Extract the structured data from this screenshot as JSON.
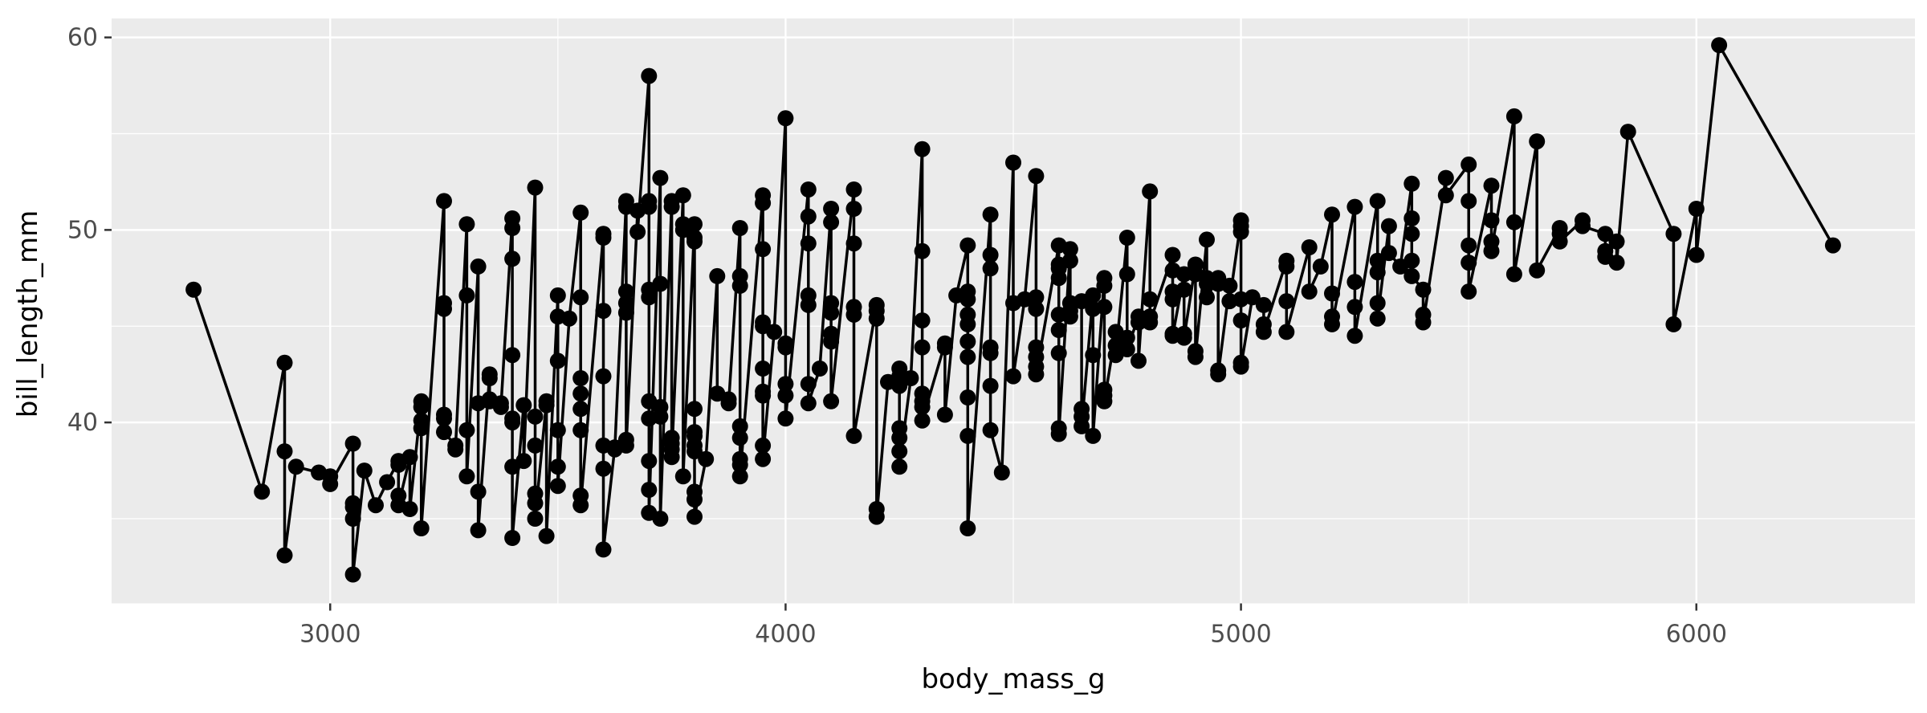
{
  "page": {
    "background": "#FFFFFF"
  },
  "chart_data": {
    "type": "line",
    "title": "",
    "xlabel": "body_mass_g",
    "ylabel": "bill_length_mm",
    "legend": "none",
    "grid": "major+minor",
    "x_axis": {
      "ticks": [
        3000,
        4000,
        5000,
        6000
      ],
      "minor_ticks": [
        2500,
        3500,
        4500,
        5500
      ],
      "range": [
        2520,
        6480
      ]
    },
    "y_axis": {
      "ticks": [
        40,
        50,
        60
      ],
      "minor_ticks": [
        35,
        45,
        55
      ],
      "range": [
        30.6,
        60.985
      ]
    },
    "style": {
      "panel_bg": "#EBEBEB",
      "grid_color": "#FFFFFF",
      "line_color": "#000000",
      "point_color": "#000000",
      "tick_mark_color": "#333333",
      "tick_label_color": "#4D4D4D",
      "axis_title_color": "#000000",
      "point_radius": 10,
      "line_width": 3.5
    },
    "points": [
      [
        2700,
        46.9
      ],
      [
        2850,
        36.4
      ],
      [
        2900,
        43.1
      ],
      [
        2900,
        38.5
      ],
      [
        2900,
        33.1
      ],
      [
        2925,
        37.7
      ],
      [
        2975,
        37.4
      ],
      [
        3000,
        37.2
      ],
      [
        3000,
        36.8
      ],
      [
        3050,
        38.9
      ],
      [
        3050,
        35.8
      ],
      [
        3050,
        35.6
      ],
      [
        3050,
        35.0
      ],
      [
        3050,
        32.1
      ],
      [
        3075,
        37.5
      ],
      [
        3100,
        35.7
      ],
      [
        3125,
        36.9
      ],
      [
        3150,
        38.0
      ],
      [
        3150,
        37.8
      ],
      [
        3150,
        36.2
      ],
      [
        3150,
        35.7
      ],
      [
        3175,
        38.2
      ],
      [
        3175,
        35.5
      ],
      [
        3200,
        41.1
      ],
      [
        3200,
        40.8
      ],
      [
        3200,
        40.1
      ],
      [
        3200,
        39.7
      ],
      [
        3200,
        34.5
      ],
      [
        3250,
        51.5
      ],
      [
        3250,
        46.2
      ],
      [
        3250,
        45.9
      ],
      [
        3250,
        40.4
      ],
      [
        3250,
        40.2
      ],
      [
        3250,
        39.5
      ],
      [
        3275,
        38.8
      ],
      [
        3275,
        38.6
      ],
      [
        3300,
        50.3
      ],
      [
        3300,
        46.6
      ],
      [
        3300,
        39.6
      ],
      [
        3300,
        37.2
      ],
      [
        3325,
        48.1
      ],
      [
        3325,
        41.0
      ],
      [
        3325,
        36.4
      ],
      [
        3325,
        34.4
      ],
      [
        3350,
        42.5
      ],
      [
        3350,
        42.3
      ],
      [
        3350,
        41.2
      ],
      [
        3350,
        41.1
      ],
      [
        3375,
        41.0
      ],
      [
        3375,
        40.8
      ],
      [
        3400,
        50.6
      ],
      [
        3400,
        50.1
      ],
      [
        3400,
        48.5
      ],
      [
        3400,
        43.5
      ],
      [
        3400,
        40.2
      ],
      [
        3400,
        40.0
      ],
      [
        3400,
        37.7
      ],
      [
        3400,
        34.0
      ],
      [
        3425,
        40.9
      ],
      [
        3425,
        38.0
      ],
      [
        3450,
        52.2
      ],
      [
        3450,
        40.3
      ],
      [
        3450,
        38.8
      ],
      [
        3450,
        36.3
      ],
      [
        3450,
        35.8
      ],
      [
        3450,
        35.0
      ],
      [
        3475,
        41.1
      ],
      [
        3475,
        40.9
      ],
      [
        3475,
        34.1
      ],
      [
        3500,
        46.6
      ],
      [
        3500,
        45.5
      ],
      [
        3500,
        43.2
      ],
      [
        3500,
        39.6
      ],
      [
        3500,
        37.7
      ],
      [
        3500,
        36.7
      ],
      [
        3525,
        45.4
      ],
      [
        3550,
        50.9
      ],
      [
        3550,
        46.5
      ],
      [
        3550,
        42.3
      ],
      [
        3550,
        41.5
      ],
      [
        3550,
        40.7
      ],
      [
        3550,
        39.6
      ],
      [
        3550,
        36.2
      ],
      [
        3550,
        35.7
      ],
      [
        3600,
        49.8
      ],
      [
        3600,
        49.6
      ],
      [
        3600,
        45.8
      ],
      [
        3600,
        42.4
      ],
      [
        3600,
        38.8
      ],
      [
        3600,
        37.6
      ],
      [
        3600,
        33.4
      ],
      [
        3625,
        38.7
      ],
      [
        3625,
        38.6
      ],
      [
        3650,
        51.5
      ],
      [
        3650,
        51.2
      ],
      [
        3650,
        46.8
      ],
      [
        3650,
        46.2
      ],
      [
        3650,
        45.7
      ],
      [
        3650,
        39.1
      ],
      [
        3650,
        38.8
      ],
      [
        3675,
        51.0
      ],
      [
        3675,
        49.9
      ],
      [
        3700,
        58.0
      ],
      [
        3700,
        51.5
      ],
      [
        3700,
        51.2
      ],
      [
        3700,
        46.9
      ],
      [
        3700,
        46.5
      ],
      [
        3700,
        41.1
      ],
      [
        3700,
        40.2
      ],
      [
        3700,
        38.0
      ],
      [
        3700,
        36.5
      ],
      [
        3700,
        35.3
      ],
      [
        3725,
        52.7
      ],
      [
        3725,
        47.2
      ],
      [
        3725,
        40.8
      ],
      [
        3725,
        40.3
      ],
      [
        3725,
        35.0
      ],
      [
        3750,
        51.5
      ],
      [
        3750,
        51.2
      ],
      [
        3750,
        39.2
      ],
      [
        3750,
        38.9
      ],
      [
        3750,
        38.6
      ],
      [
        3750,
        38.2
      ],
      [
        3775,
        51.8
      ],
      [
        3775,
        50.3
      ],
      [
        3775,
        50.0
      ],
      [
        3775,
        37.2
      ],
      [
        3800,
        50.3
      ],
      [
        3800,
        49.6
      ],
      [
        3800,
        49.4
      ],
      [
        3800,
        40.7
      ],
      [
        3800,
        39.5
      ],
      [
        3800,
        39.3
      ],
      [
        3800,
        38.8
      ],
      [
        3800,
        38.5
      ],
      [
        3800,
        36.4
      ],
      [
        3800,
        36.0
      ],
      [
        3800,
        35.1
      ],
      [
        3825,
        38.1
      ],
      [
        3850,
        47.6
      ],
      [
        3850,
        41.5
      ],
      [
        3875,
        41.2
      ],
      [
        3875,
        41.0
      ],
      [
        3900,
        50.1
      ],
      [
        3900,
        47.6
      ],
      [
        3900,
        47.1
      ],
      [
        3900,
        39.8
      ],
      [
        3900,
        39.2
      ],
      [
        3900,
        38.1
      ],
      [
        3900,
        37.8
      ],
      [
        3900,
        37.2
      ],
      [
        3950,
        51.8
      ],
      [
        3950,
        51.4
      ],
      [
        3950,
        49.0
      ],
      [
        3950,
        45.2
      ],
      [
        3950,
        45.0
      ],
      [
        3950,
        42.8
      ],
      [
        3950,
        41.6
      ],
      [
        3950,
        41.4
      ],
      [
        3950,
        38.8
      ],
      [
        3950,
        38.1
      ],
      [
        3975,
        44.7
      ],
      [
        4000,
        55.8
      ],
      [
        4000,
        44.1
      ],
      [
        4000,
        43.9
      ],
      [
        4000,
        42.0
      ],
      [
        4000,
        41.4
      ],
      [
        4000,
        40.2
      ],
      [
        4050,
        52.1
      ],
      [
        4050,
        50.7
      ],
      [
        4050,
        49.3
      ],
      [
        4050,
        46.6
      ],
      [
        4050,
        46.1
      ],
      [
        4050,
        42.0
      ],
      [
        4050,
        41.0
      ],
      [
        4075,
        42.8
      ],
      [
        4100,
        51.1
      ],
      [
        4100,
        50.4
      ],
      [
        4100,
        46.2
      ],
      [
        4100,
        45.7
      ],
      [
        4100,
        44.6
      ],
      [
        4100,
        44.2
      ],
      [
        4100,
        41.1
      ],
      [
        4150,
        52.1
      ],
      [
        4150,
        51.1
      ],
      [
        4150,
        49.3
      ],
      [
        4150,
        46.0
      ],
      [
        4150,
        45.6
      ],
      [
        4150,
        39.3
      ],
      [
        4200,
        46.1
      ],
      [
        4200,
        45.8
      ],
      [
        4200,
        45.4
      ],
      [
        4200,
        35.5
      ],
      [
        4200,
        35.1
      ],
      [
        4225,
        42.1
      ],
      [
        4250,
        42.8
      ],
      [
        4250,
        42.4
      ],
      [
        4250,
        41.9
      ],
      [
        4250,
        39.7
      ],
      [
        4250,
        39.2
      ],
      [
        4250,
        38.5
      ],
      [
        4250,
        37.7
      ],
      [
        4275,
        42.3
      ],
      [
        4300,
        54.2
      ],
      [
        4300,
        48.9
      ],
      [
        4300,
        45.3
      ],
      [
        4300,
        43.9
      ],
      [
        4300,
        41.5
      ],
      [
        4300,
        41.1
      ],
      [
        4300,
        40.8
      ],
      [
        4300,
        40.1
      ],
      [
        4350,
        44.1
      ],
      [
        4350,
        43.9
      ],
      [
        4350,
        40.4
      ],
      [
        4375,
        46.6
      ],
      [
        4400,
        49.2
      ],
      [
        4400,
        46.8
      ],
      [
        4400,
        46.4
      ],
      [
        4400,
        45.6
      ],
      [
        4400,
        45.1
      ],
      [
        4400,
        44.2
      ],
      [
        4400,
        43.4
      ],
      [
        4400,
        41.3
      ],
      [
        4400,
        39.3
      ],
      [
        4400,
        34.5
      ],
      [
        4450,
        50.8
      ],
      [
        4450,
        48.7
      ],
      [
        4450,
        48.0
      ],
      [
        4450,
        43.9
      ],
      [
        4450,
        43.6
      ],
      [
        4450,
        41.9
      ],
      [
        4450,
        39.6
      ],
      [
        4475,
        37.4
      ],
      [
        4500,
        53.5
      ],
      [
        4500,
        46.2
      ],
      [
        4500,
        42.4
      ],
      [
        4525,
        46.4
      ],
      [
        4550,
        52.8
      ],
      [
        4550,
        46.5
      ],
      [
        4550,
        45.9
      ],
      [
        4550,
        43.9
      ],
      [
        4550,
        43.4
      ],
      [
        4550,
        42.9
      ],
      [
        4550,
        42.5
      ],
      [
        4600,
        49.2
      ],
      [
        4600,
        48.2
      ],
      [
        4600,
        48.0
      ],
      [
        4600,
        47.5
      ],
      [
        4600,
        45.6
      ],
      [
        4600,
        44.8
      ],
      [
        4600,
        43.6
      ],
      [
        4600,
        39.7
      ],
      [
        4600,
        39.4
      ],
      [
        4625,
        49.0
      ],
      [
        4625,
        48.4
      ],
      [
        4625,
        46.2
      ],
      [
        4625,
        45.8
      ],
      [
        4625,
        45.5
      ],
      [
        4650,
        46.3
      ],
      [
        4650,
        40.7
      ],
      [
        4650,
        40.3
      ],
      [
        4650,
        39.8
      ],
      [
        4675,
        46.6
      ],
      [
        4675,
        45.9
      ],
      [
        4675,
        43.5
      ],
      [
        4675,
        39.3
      ],
      [
        4700,
        47.5
      ],
      [
        4700,
        47.1
      ],
      [
        4700,
        46.0
      ],
      [
        4700,
        41.7
      ],
      [
        4700,
        41.4
      ],
      [
        4700,
        41.1
      ],
      [
        4725,
        44.7
      ],
      [
        4725,
        44.0
      ],
      [
        4725,
        43.5
      ],
      [
        4750,
        49.6
      ],
      [
        4750,
        47.7
      ],
      [
        4750,
        44.4
      ],
      [
        4750,
        43.8
      ],
      [
        4775,
        45.5
      ],
      [
        4775,
        45.2
      ],
      [
        4775,
        43.2
      ],
      [
        4800,
        52.0
      ],
      [
        4800,
        46.4
      ],
      [
        4800,
        45.5
      ],
      [
        4800,
        45.2
      ],
      [
        4850,
        48.7
      ],
      [
        4850,
        47.9
      ],
      [
        4850,
        46.8
      ],
      [
        4850,
        46.4
      ],
      [
        4850,
        44.6
      ],
      [
        4850,
        44.5
      ],
      [
        4875,
        47.7
      ],
      [
        4875,
        46.9
      ],
      [
        4875,
        44.6
      ],
      [
        4875,
        44.4
      ],
      [
        4900,
        48.2
      ],
      [
        4900,
        47.7
      ],
      [
        4900,
        43.7
      ],
      [
        4900,
        43.4
      ],
      [
        4925,
        49.5
      ],
      [
        4925,
        47.5
      ],
      [
        4925,
        47.2
      ],
      [
        4925,
        46.5
      ],
      [
        4950,
        47.5
      ],
      [
        4950,
        47.2
      ],
      [
        4950,
        42.7
      ],
      [
        4950,
        42.5
      ],
      [
        4975,
        47.1
      ],
      [
        4975,
        46.3
      ],
      [
        5000,
        50.5
      ],
      [
        5000,
        50.2
      ],
      [
        5000,
        49.9
      ],
      [
        5000,
        46.4
      ],
      [
        5000,
        45.3
      ],
      [
        5000,
        43.1
      ],
      [
        5000,
        42.9
      ],
      [
        5025,
        46.5
      ],
      [
        5050,
        46.1
      ],
      [
        5050,
        45.1
      ],
      [
        5050,
        44.7
      ],
      [
        5100,
        48.4
      ],
      [
        5100,
        48.1
      ],
      [
        5100,
        46.3
      ],
      [
        5100,
        44.7
      ],
      [
        5150,
        49.1
      ],
      [
        5150,
        46.8
      ],
      [
        5175,
        48.1
      ],
      [
        5200,
        50.8
      ],
      [
        5200,
        46.7
      ],
      [
        5200,
        45.5
      ],
      [
        5200,
        45.1
      ],
      [
        5250,
        51.2
      ],
      [
        5250,
        47.3
      ],
      [
        5250,
        46.0
      ],
      [
        5250,
        44.5
      ],
      [
        5300,
        51.5
      ],
      [
        5300,
        48.4
      ],
      [
        5300,
        47.8
      ],
      [
        5300,
        46.2
      ],
      [
        5300,
        45.4
      ],
      [
        5325,
        50.2
      ],
      [
        5325,
        48.8
      ],
      [
        5350,
        48.1
      ],
      [
        5375,
        52.4
      ],
      [
        5375,
        50.6
      ],
      [
        5375,
        49.8
      ],
      [
        5375,
        48.4
      ],
      [
        5375,
        47.6
      ],
      [
        5400,
        46.9
      ],
      [
        5400,
        45.6
      ],
      [
        5400,
        45.2
      ],
      [
        5450,
        52.7
      ],
      [
        5450,
        51.8
      ],
      [
        5500,
        53.4
      ],
      [
        5500,
        51.5
      ],
      [
        5500,
        49.2
      ],
      [
        5500,
        48.3
      ],
      [
        5500,
        46.8
      ],
      [
        5550,
        52.3
      ],
      [
        5550,
        50.5
      ],
      [
        5550,
        49.4
      ],
      [
        5550,
        48.9
      ],
      [
        5600,
        55.9
      ],
      [
        5600,
        50.4
      ],
      [
        5600,
        47.7
      ],
      [
        5650,
        54.6
      ],
      [
        5650,
        47.9
      ],
      [
        5700,
        50.1
      ],
      [
        5700,
        49.8
      ],
      [
        5700,
        49.4
      ],
      [
        5750,
        50.5
      ],
      [
        5750,
        50.2
      ],
      [
        5800,
        49.8
      ],
      [
        5800,
        48.9
      ],
      [
        5800,
        48.6
      ],
      [
        5825,
        49.4
      ],
      [
        5825,
        48.3
      ],
      [
        5850,
        55.1
      ],
      [
        5950,
        49.8
      ],
      [
        5950,
        45.1
      ],
      [
        6000,
        51.1
      ],
      [
        6000,
        48.7
      ],
      [
        6050,
        59.6
      ],
      [
        6300,
        49.2
      ]
    ]
  }
}
